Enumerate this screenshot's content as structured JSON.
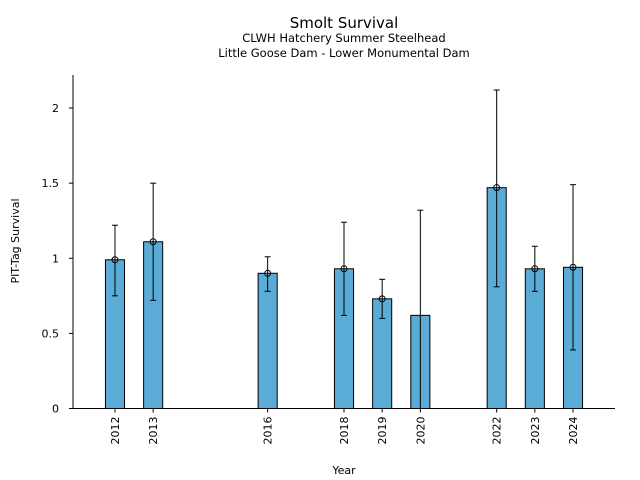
{
  "chart_data": {
    "type": "bar",
    "title": "Smolt Survival",
    "subtitle_lines": [
      "CLWH Hatchery Summer Steelhead",
      "Little Goose Dam - Lower Monumental Dam"
    ],
    "xlabel": "Year",
    "ylabel": "PIT-Tag Survival",
    "x_range": [
      2010.9,
      2025.1
    ],
    "ylim": [
      0,
      2.22
    ],
    "yticks": [
      0,
      0.5,
      1,
      1.5,
      2
    ],
    "ytick_labels": [
      "0",
      "0.5",
      "1",
      "1.5",
      "2"
    ],
    "bar_color": "#5aabd6",
    "series": [
      {
        "x": [
          2012,
          2013,
          2016,
          2018,
          2019,
          2020,
          2022,
          2023,
          2024
        ],
        "x_labels": [
          "2012",
          "2013",
          "2016",
          "2018",
          "2019",
          "2020",
          "2022",
          "2023",
          "2024"
        ],
        "values": [
          0.99,
          1.11,
          0.9,
          0.93,
          0.73,
          0.62,
          1.47,
          0.93,
          0.94
        ],
        "ci_low": [
          0.75,
          0.72,
          0.78,
          0.62,
          0.6,
          0.0,
          0.81,
          0.78,
          0.39
        ],
        "ci_high": [
          1.22,
          1.5,
          1.01,
          1.24,
          0.86,
          1.32,
          2.12,
          1.08,
          1.49
        ],
        "point_marker": [
          true,
          true,
          true,
          true,
          true,
          false,
          true,
          true,
          true
        ]
      }
    ],
    "grid": false
  }
}
